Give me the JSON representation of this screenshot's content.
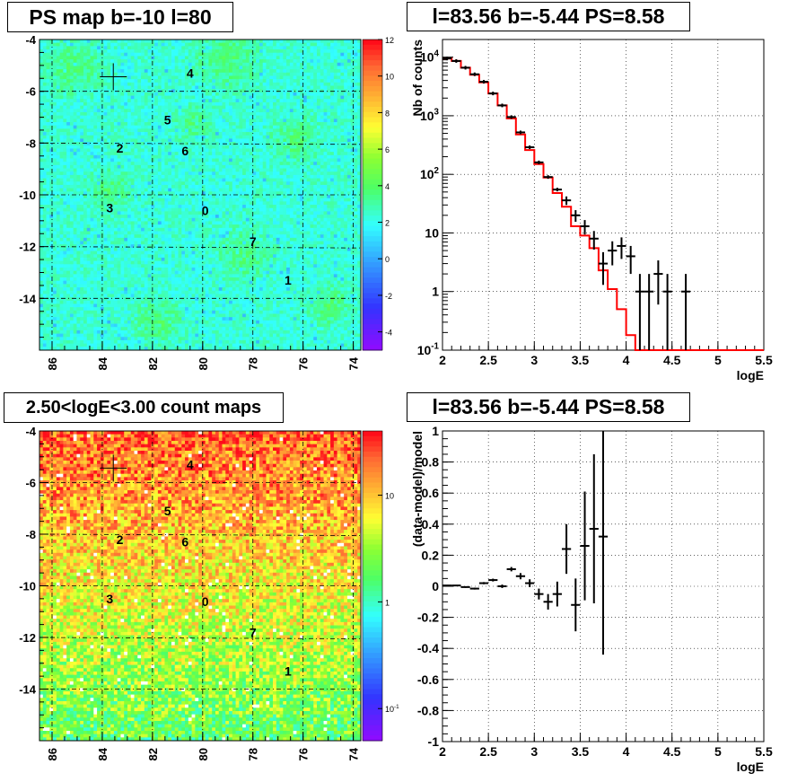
{
  "titles": {
    "ps_map": "PS map b=-10 l=80",
    "spectrum": "l=83.56 b=-5.44 PS=8.58",
    "count_map": "2.50<logE<3.00 count maps",
    "residual": "l=83.56 b=-5.44 PS=8.58"
  },
  "colors": {
    "model_line": "#ff0000",
    "data_marks": "#000000",
    "map_cyan": "#33ffff",
    "map_green": "#66ff33",
    "map_orange": "#ff6633"
  },
  "chart_data": [
    {
      "type": "heatmap",
      "title": "PS map b=-10 l=80",
      "xlabel": "",
      "ylabel": "",
      "x_ticks": [
        "86",
        "84",
        "82",
        "80",
        "78",
        "76",
        "74"
      ],
      "y_ticks": [
        "-4",
        "-6",
        "-8",
        "-10",
        "-12",
        "-14"
      ],
      "xlim": [
        86.5,
        73.7
      ],
      "ylim": [
        -16,
        -4
      ],
      "colorbar": {
        "ticks": [
          "12",
          "10",
          "8",
          "6",
          "4",
          "2",
          "0",
          "-2",
          "-4"
        ],
        "range": [
          -5,
          12
        ]
      },
      "grid": true,
      "marker": {
        "x": 83.56,
        "y": -5.44
      },
      "sources": [
        {
          "label": "4",
          "x": 80.5,
          "y": -5.3
        },
        {
          "label": "5",
          "x": 81.4,
          "y": -7.1
        },
        {
          "label": "2",
          "x": 83.3,
          "y": -8.2
        },
        {
          "label": "6",
          "x": 80.7,
          "y": -8.3
        },
        {
          "label": "3",
          "x": 83.7,
          "y": -10.5
        },
        {
          "label": "0",
          "x": 79.9,
          "y": -10.6
        },
        {
          "label": "7",
          "x": 78.0,
          "y": -11.8
        },
        {
          "label": "1",
          "x": 76.6,
          "y": -13.3
        }
      ]
    },
    {
      "type": "line",
      "title": "l=83.56 b=-5.44 PS=8.58",
      "xlabel": "logE",
      "ylabel": "Nb of counts",
      "xlim": [
        2,
        5.5
      ],
      "ylim": [
        0.1,
        20000
      ],
      "log_y": true,
      "x_ticks": [
        "2",
        "2.5",
        "3",
        "3.5",
        "4",
        "4.5",
        "5",
        "5.5"
      ],
      "y_ticks": [
        "10^-1",
        "1",
        "10",
        "10^2",
        "10^3",
        "10^4"
      ],
      "grid": true,
      "bin_width": 0.1,
      "model_step": {
        "x": [
          2.0,
          2.1,
          2.2,
          2.3,
          2.4,
          2.5,
          2.6,
          2.7,
          2.8,
          2.9,
          3.0,
          3.1,
          3.2,
          3.3,
          3.4,
          3.5,
          3.6,
          3.7,
          3.8,
          3.9,
          4.0,
          4.1,
          4.2,
          4.3,
          4.4,
          4.5,
          4.6,
          4.7,
          4.8,
          4.9,
          5.0,
          5.1,
          5.2,
          5.3,
          5.4
        ],
        "values": [
          9500,
          8600,
          6600,
          5000,
          3700,
          2400,
          1500,
          900,
          480,
          260,
          150,
          88,
          48,
          28,
          13,
          9,
          5.5,
          2.3,
          1.1,
          0.5,
          0.18,
          0.1,
          0.1,
          0.1,
          0.1,
          0.1,
          0.1,
          0.1,
          0.1,
          0.1,
          0.1,
          0.1,
          0.1,
          0.1,
          0.1
        ]
      },
      "data_points": [
        {
          "x": 2.05,
          "y": 9500,
          "err": 0
        },
        {
          "x": 2.15,
          "y": 8600,
          "err": 0
        },
        {
          "x": 2.25,
          "y": 6600,
          "err": 0
        },
        {
          "x": 2.35,
          "y": 5100,
          "err": 0
        },
        {
          "x": 2.45,
          "y": 3800,
          "err": 0
        },
        {
          "x": 2.55,
          "y": 2400,
          "err": 0
        },
        {
          "x": 2.65,
          "y": 1500,
          "err": 0
        },
        {
          "x": 2.75,
          "y": 950,
          "err": 0
        },
        {
          "x": 2.85,
          "y": 520,
          "err": 0
        },
        {
          "x": 2.95,
          "y": 290,
          "err": 0
        },
        {
          "x": 3.05,
          "y": 160,
          "err": 0
        },
        {
          "x": 3.15,
          "y": 90,
          "err": 0
        },
        {
          "x": 3.25,
          "y": 55,
          "err": 0
        },
        {
          "x": 3.35,
          "y": 36,
          "err": 6
        },
        {
          "x": 3.45,
          "y": 20,
          "err": 4.5
        },
        {
          "x": 3.55,
          "y": 13,
          "err": 3.6
        },
        {
          "x": 3.65,
          "y": 8,
          "err": 2.8
        },
        {
          "x": 3.75,
          "y": 3,
          "err": 1.7
        },
        {
          "x": 3.85,
          "y": 5,
          "err": 2.2
        },
        {
          "x": 3.95,
          "y": 6,
          "err": 2.4
        },
        {
          "x": 4.05,
          "y": 4,
          "err": 2
        },
        {
          "x": 4.15,
          "y": 1,
          "err": 1
        },
        {
          "x": 4.25,
          "y": 1,
          "err": 1
        },
        {
          "x": 4.35,
          "y": 2,
          "err": 1.4
        },
        {
          "x": 4.45,
          "y": 1,
          "err": 1
        },
        {
          "x": 4.65,
          "y": 1,
          "err": 1
        }
      ]
    },
    {
      "type": "heatmap",
      "title": "2.50<logE<3.00 count maps",
      "xlabel": "",
      "ylabel": "",
      "x_ticks": [
        "86",
        "84",
        "82",
        "80",
        "78",
        "76",
        "74"
      ],
      "y_ticks": [
        "-4",
        "-6",
        "-8",
        "-10",
        "-12",
        "-14"
      ],
      "xlim": [
        86.5,
        73.7
      ],
      "ylim": [
        -16,
        -4
      ],
      "log_colorbar": true,
      "colorbar": {
        "ticks": [
          "10",
          "1",
          "10^-1"
        ],
        "range": [
          0.05,
          40
        ]
      },
      "grid": true,
      "marker": {
        "x": 83.56,
        "y": -5.44
      },
      "sources": [
        {
          "label": "4",
          "x": 80.5,
          "y": -5.3
        },
        {
          "label": "5",
          "x": 81.4,
          "y": -7.1
        },
        {
          "label": "2",
          "x": 83.3,
          "y": -8.2
        },
        {
          "label": "6",
          "x": 80.7,
          "y": -8.3
        },
        {
          "label": "3",
          "x": 83.7,
          "y": -10.5
        },
        {
          "label": "0",
          "x": 79.9,
          "y": -10.6
        },
        {
          "label": "7",
          "x": 78.0,
          "y": -11.8
        },
        {
          "label": "1",
          "x": 76.6,
          "y": -13.3
        }
      ]
    },
    {
      "type": "scatter",
      "title": "l=83.56 b=-5.44 PS=8.58",
      "xlabel": "logE",
      "ylabel": "(data-model)/model",
      "xlim": [
        2,
        5.5
      ],
      "ylim": [
        -1,
        1
      ],
      "x_ticks": [
        "2",
        "2.5",
        "3",
        "3.5",
        "4",
        "4.5",
        "5",
        "5.5"
      ],
      "y_ticks": [
        "-1",
        "-0.8",
        "-0.6",
        "-0.4",
        "-0.2",
        "0",
        "0.2",
        "0.4",
        "0.6",
        "0.8",
        "1"
      ],
      "grid": true,
      "bin_width": 0.1,
      "points": [
        {
          "x": 2.05,
          "y": 0.005,
          "err": 0.004
        },
        {
          "x": 2.15,
          "y": 0.005,
          "err": 0.004
        },
        {
          "x": 2.25,
          "y": -0.005,
          "err": 0.005
        },
        {
          "x": 2.35,
          "y": -0.015,
          "err": 0.006
        },
        {
          "x": 2.45,
          "y": 0.02,
          "err": 0.007
        },
        {
          "x": 2.55,
          "y": 0.04,
          "err": 0.009
        },
        {
          "x": 2.65,
          "y": 0.0,
          "err": 0.011
        },
        {
          "x": 2.75,
          "y": 0.11,
          "err": 0.014
        },
        {
          "x": 2.85,
          "y": 0.065,
          "err": 0.02
        },
        {
          "x": 2.95,
          "y": 0.02,
          "err": 0.025
        },
        {
          "x": 3.05,
          "y": -0.05,
          "err": 0.035
        },
        {
          "x": 3.15,
          "y": -0.1,
          "err": 0.05
        },
        {
          "x": 3.25,
          "y": -0.05,
          "err": 0.08
        },
        {
          "x": 3.35,
          "y": 0.24,
          "err": 0.16
        },
        {
          "x": 3.45,
          "y": -0.12,
          "err": 0.17
        },
        {
          "x": 3.55,
          "y": 0.26,
          "err": 0.35
        },
        {
          "x": 3.65,
          "y": 0.37,
          "err": 0.48
        },
        {
          "x": 3.75,
          "y": 0.32,
          "err": 0.76
        }
      ]
    }
  ]
}
